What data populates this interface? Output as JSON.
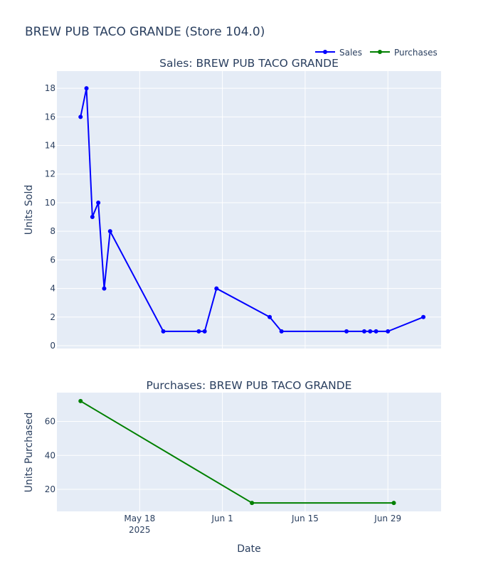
{
  "figure_title": "BREW PUB TACO GRANDE (Store 104.0)",
  "x_axis_title": "Date",
  "legend": [
    {
      "name": "Sales",
      "color": "#0000ff"
    },
    {
      "name": "Purchases",
      "color": "#008000"
    }
  ],
  "x_ticks": [
    {
      "date": "2025-05-18",
      "label": "May 18",
      "sublabel": "2025"
    },
    {
      "date": "2025-06-01",
      "label": "Jun 1",
      "sublabel": ""
    },
    {
      "date": "2025-06-15",
      "label": "Jun 15",
      "sublabel": ""
    },
    {
      "date": "2025-06-29",
      "label": "Jun 29",
      "sublabel": ""
    }
  ],
  "colors": {
    "plot_bg": "#e5ecf6",
    "grid": "#ffffff",
    "text": "#2a3f5f"
  },
  "chart_data": [
    {
      "type": "line",
      "title": "Sales: BREW PUB TACO GRANDE",
      "ylabel": "Units Sold",
      "xlim": [
        "2025-05-04",
        "2025-07-08"
      ],
      "ylim": [
        -0.2,
        19.2
      ],
      "yticks": [
        0,
        2,
        4,
        6,
        8,
        10,
        12,
        14,
        16,
        18
      ],
      "grid": true,
      "series": [
        {
          "name": "Sales",
          "color": "#0000ff",
          "x": [
            "2025-05-08",
            "2025-05-09",
            "2025-05-10",
            "2025-05-11",
            "2025-05-12",
            "2025-05-13",
            "2025-05-22",
            "2025-05-28",
            "2025-05-29",
            "2025-05-31",
            "2025-06-09",
            "2025-06-11",
            "2025-06-22",
            "2025-06-25",
            "2025-06-26",
            "2025-06-27",
            "2025-06-29",
            "2025-07-05"
          ],
          "y": [
            16,
            18,
            9,
            10,
            4,
            8,
            1,
            1,
            1,
            4,
            2,
            1,
            1,
            1,
            1,
            1,
            1,
            2
          ]
        }
      ]
    },
    {
      "type": "line",
      "title": "Purchases: BREW PUB TACO GRANDE",
      "ylabel": "Units Purchased",
      "xlim": [
        "2025-05-04",
        "2025-07-08"
      ],
      "ylim": [
        7,
        77
      ],
      "yticks": [
        20,
        40,
        60
      ],
      "grid": true,
      "series": [
        {
          "name": "Purchases",
          "color": "#008000",
          "x": [
            "2025-05-08",
            "2025-06-06",
            "2025-06-30"
          ],
          "y": [
            72,
            12,
            12
          ]
        }
      ]
    }
  ]
}
